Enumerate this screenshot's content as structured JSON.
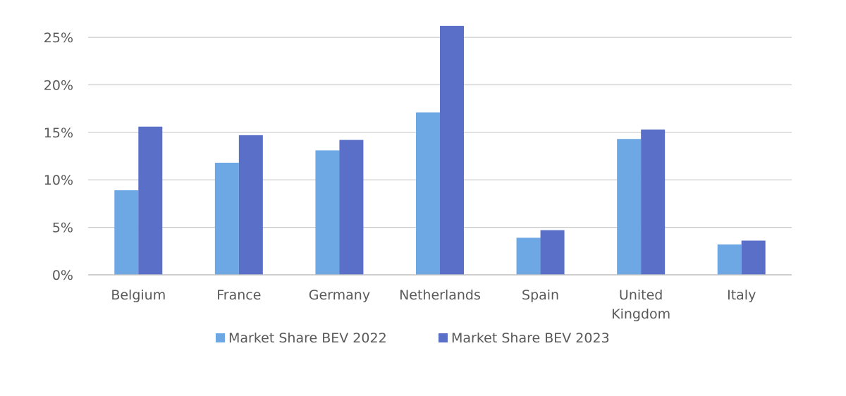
{
  "chart_data": {
    "type": "bar",
    "categories": [
      "Belgium",
      "France",
      "Germany",
      "Netherlands",
      "Spain",
      "United Kingdom",
      "Italy"
    ],
    "series": [
      {
        "name": "Market Share BEV 2022",
        "color": "#6ea8e4",
        "values": [
          8.9,
          11.8,
          13.1,
          17.1,
          3.9,
          14.3,
          3.2
        ]
      },
      {
        "name": "Market Share BEV 2023",
        "color": "#5a70c8",
        "values": [
          15.6,
          14.7,
          14.2,
          26.2,
          4.7,
          15.3,
          3.6
        ]
      }
    ],
    "y_ticks": [
      "0%",
      "5%",
      "10%",
      "15%",
      "20%",
      "25%"
    ],
    "ylim": [
      0,
      25
    ],
    "grid": true,
    "legend_position": "bottom"
  }
}
